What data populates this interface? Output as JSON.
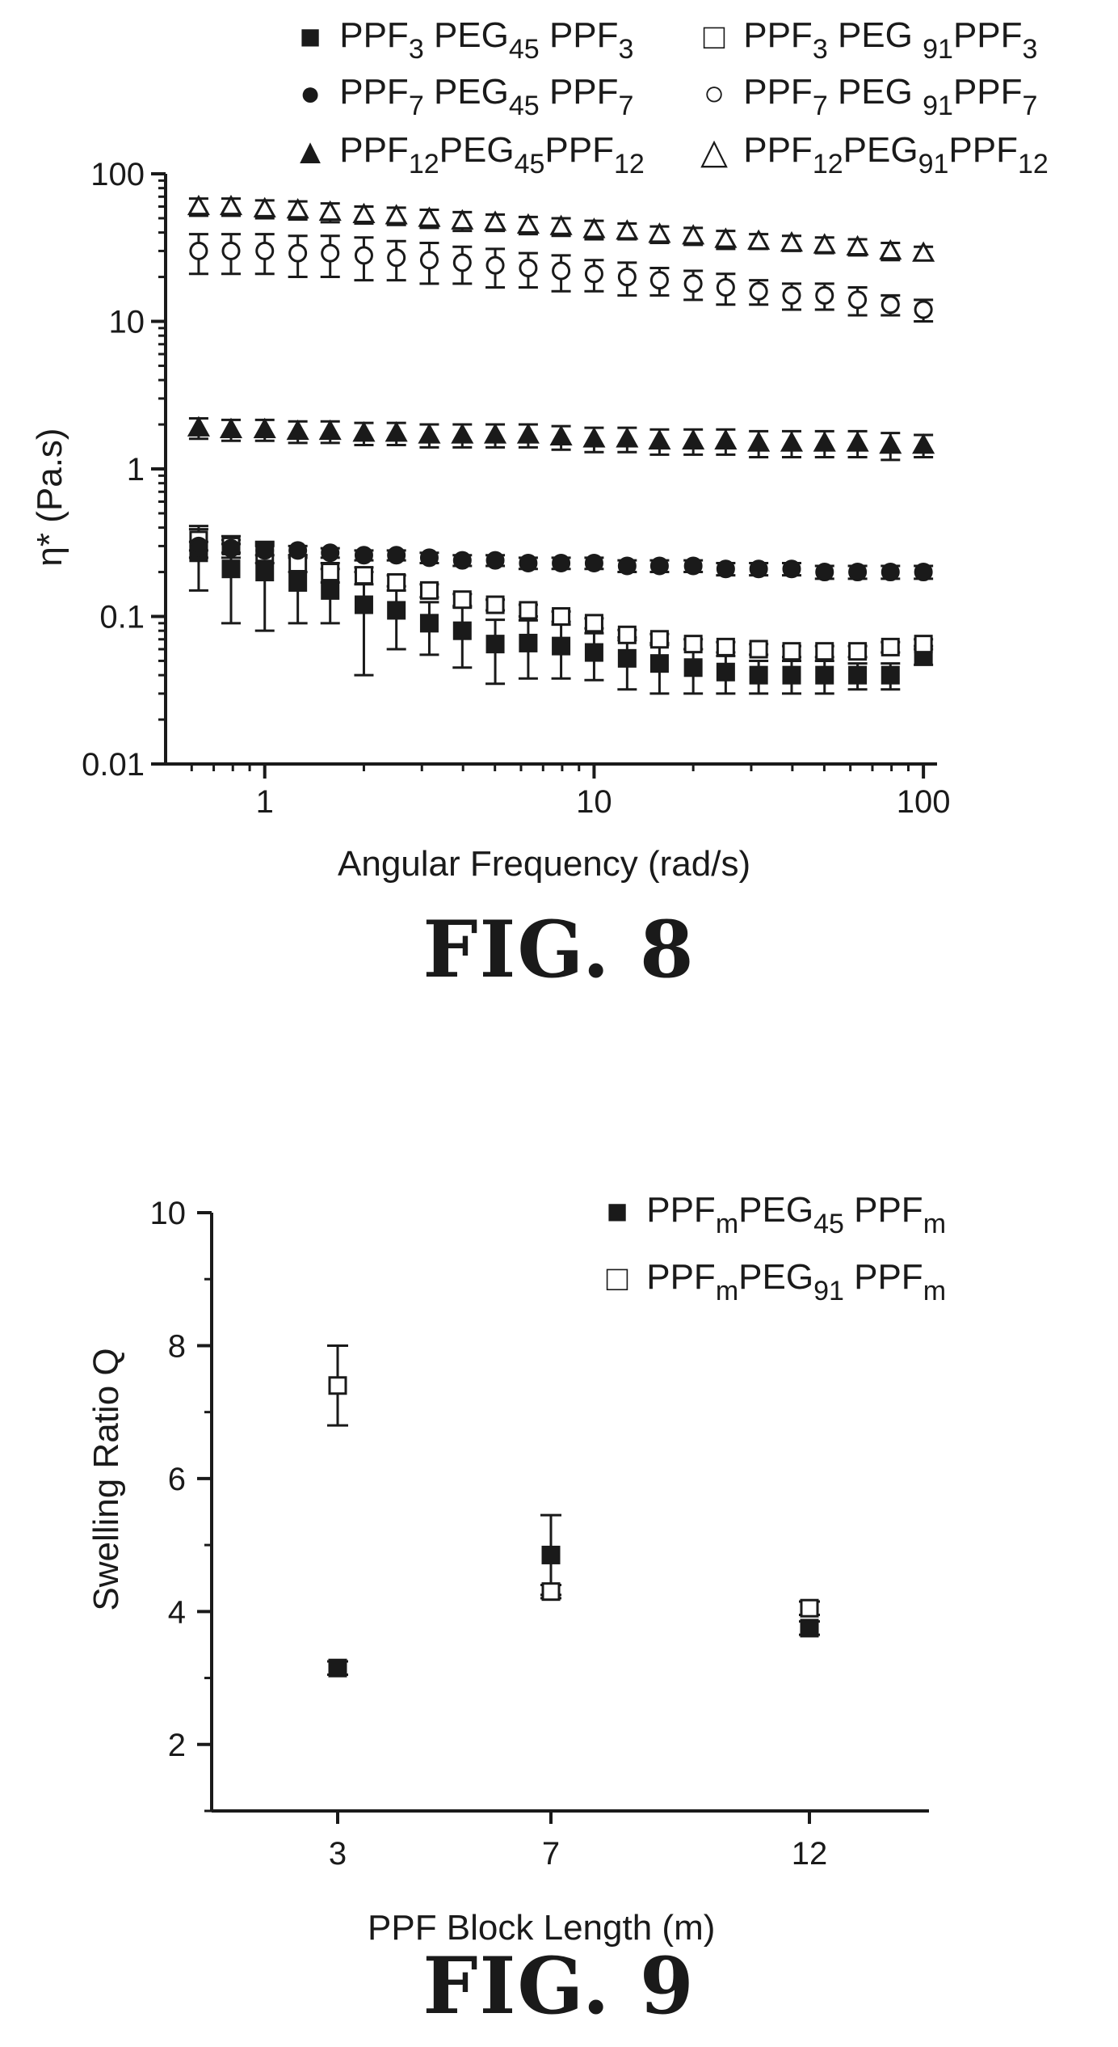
{
  "chart_data": [
    {
      "type": "scatter",
      "caption": "FIG. 8",
      "xlabel": "Angular Frequency (rad/s)",
      "ylabel": "η* (Pa.s)",
      "xscale": "log",
      "yscale": "log",
      "xlim": [
        0.5,
        110
      ],
      "ylim": [
        0.01,
        100
      ],
      "x_ticks": [
        "1",
        "10",
        "100"
      ],
      "y_ticks": [
        "0.01",
        "0.1",
        "1",
        "10",
        "100"
      ],
      "legend_position": "top",
      "x": [
        0.63,
        0.79,
        1.0,
        1.26,
        1.58,
        2.0,
        2.51,
        3.16,
        3.98,
        5.01,
        6.31,
        7.94,
        10.0,
        12.6,
        15.8,
        20.0,
        25.1,
        31.6,
        39.8,
        50.1,
        63.1,
        79.4,
        100.0
      ],
      "series": [
        {
          "name": "PPF3 PEG45 PPF3",
          "marker": "filled-square",
          "values": [
            0.27,
            0.21,
            0.2,
            0.17,
            0.15,
            0.12,
            0.11,
            0.09,
            0.08,
            0.065,
            0.066,
            0.063,
            0.057,
            0.052,
            0.048,
            0.045,
            0.042,
            0.04,
            0.04,
            0.04,
            0.04,
            0.04,
            0.055
          ],
          "error": [
            0.12,
            0.12,
            0.12,
            0.08,
            0.06,
            0.08,
            0.05,
            0.035,
            0.035,
            0.03,
            0.028,
            0.025,
            0.02,
            0.02,
            0.018,
            0.015,
            0.012,
            0.01,
            0.01,
            0.01,
            0.008,
            0.008,
            0.008
          ]
        },
        {
          "name": "PPF3 PEG91 PPF3",
          "marker": "open-square",
          "values": [
            0.33,
            0.3,
            0.27,
            0.23,
            0.2,
            0.19,
            0.17,
            0.15,
            0.13,
            0.12,
            0.11,
            0.1,
            0.09,
            0.075,
            0.07,
            0.065,
            0.062,
            0.06,
            0.058,
            0.058,
            0.058,
            0.062,
            0.065
          ],
          "error": [
            0.08,
            0.05,
            0.04,
            0.03,
            0.03,
            0.025,
            0.02,
            0.015,
            0.012,
            0.01,
            0.01,
            0.008,
            0.007,
            0.006,
            0.006,
            0.005,
            0.005,
            0.005,
            0.005,
            0.005,
            0.005,
            0.005,
            0.005
          ]
        },
        {
          "name": "PPF7 PEG45 PPF7",
          "marker": "filled-circle",
          "values": [
            0.3,
            0.29,
            0.28,
            0.28,
            0.27,
            0.26,
            0.26,
            0.25,
            0.24,
            0.24,
            0.23,
            0.23,
            0.23,
            0.22,
            0.22,
            0.22,
            0.21,
            0.21,
            0.21,
            0.2,
            0.2,
            0.2,
            0.2
          ],
          "error": [
            0.02,
            0.02,
            0.02,
            0.02,
            0.02,
            0.02,
            0.02,
            0.02,
            0.02,
            0.02,
            0.02,
            0.02,
            0.02,
            0.02,
            0.02,
            0.02,
            0.02,
            0.02,
            0.02,
            0.02,
            0.02,
            0.02,
            0.02
          ]
        },
        {
          "name": "PPF7 PEG91 PPF7",
          "marker": "open-circle",
          "values": [
            30,
            30,
            30,
            29,
            29,
            28,
            27,
            26,
            25,
            24,
            23,
            22,
            21,
            20,
            19,
            18,
            17,
            16,
            15,
            15,
            14,
            13,
            12
          ],
          "error": [
            9,
            9,
            9,
            9,
            9,
            9,
            8,
            8,
            7,
            7,
            6,
            6,
            5,
            5,
            4,
            4,
            4,
            3,
            3,
            3,
            3,
            2,
            2
          ]
        },
        {
          "name": "PPF12 PEG45 PPF12",
          "marker": "filled-triangle",
          "values": [
            1.9,
            1.85,
            1.85,
            1.8,
            1.8,
            1.75,
            1.75,
            1.7,
            1.7,
            1.7,
            1.7,
            1.65,
            1.6,
            1.6,
            1.55,
            1.55,
            1.55,
            1.5,
            1.5,
            1.5,
            1.5,
            1.45,
            1.45
          ],
          "error": [
            0.3,
            0.3,
            0.3,
            0.3,
            0.3,
            0.3,
            0.3,
            0.3,
            0.3,
            0.3,
            0.3,
            0.3,
            0.3,
            0.3,
            0.3,
            0.3,
            0.3,
            0.3,
            0.3,
            0.3,
            0.3,
            0.3,
            0.25
          ]
        },
        {
          "name": "PPF12 PEG91 PPF12",
          "marker": "open-triangle",
          "values": [
            60,
            60,
            58,
            57,
            55,
            53,
            52,
            50,
            48,
            47,
            45,
            44,
            42,
            41,
            39,
            38,
            36,
            35,
            34,
            33,
            32,
            30,
            29
          ],
          "error": [
            8,
            8,
            8,
            8,
            8,
            7,
            7,
            7,
            7,
            6,
            6,
            6,
            6,
            5,
            5,
            5,
            5,
            4,
            4,
            4,
            4,
            4,
            3
          ]
        }
      ]
    },
    {
      "type": "scatter",
      "caption": "FIG. 9",
      "xlabel": "PPF Block Length (m)",
      "ylabel": "Swelling Ratio  Q",
      "categories": [
        "3",
        "7",
        "12"
      ],
      "ylim": [
        1.0,
        10.0
      ],
      "y_ticks": [
        "2",
        "4",
        "6",
        "8",
        "10"
      ],
      "legend_position": "top-right",
      "series": [
        {
          "name": "PPFm PEG45 PPFm",
          "marker": "filled-square",
          "values": [
            3.15,
            4.85,
            3.75
          ],
          "error": [
            0.1,
            0.6,
            0.1
          ]
        },
        {
          "name": "PPFm PEG91 PPFm",
          "marker": "open-square",
          "values": [
            7.4,
            4.3,
            4.05
          ],
          "error": [
            0.6,
            0.1,
            0.1
          ]
        }
      ]
    }
  ],
  "legend8": {
    "items": [
      {
        "a": "PPF",
        "s1": "3",
        "b": " PEG",
        "s2": "45",
        "c": " PPF",
        "s3": "3"
      },
      {
        "a": "PPF",
        "s1": "3",
        "b": " PEG ",
        "s2": "91",
        "c": "PPF",
        "s3": "3"
      },
      {
        "a": "PPF",
        "s1": "7",
        "b": " PEG",
        "s2": "45",
        "c": " PPF",
        "s3": "7"
      },
      {
        "a": "PPF",
        "s1": "7",
        "b": " PEG ",
        "s2": "91",
        "c": "PPF",
        "s3": "7"
      },
      {
        "a": "PPF",
        "s1": "12",
        "b": "PEG",
        "s2": "45",
        "c": "PPF",
        "s3": "12"
      },
      {
        "a": "PPF",
        "s1": "12",
        "b": "PEG",
        "s2": "91",
        "c": "PPF",
        "s3": "12"
      }
    ],
    "symbols": [
      "■",
      "□",
      "●",
      "○",
      "▲",
      "△"
    ]
  },
  "legend9": {
    "items": [
      {
        "a": "PPF",
        "s1": "m",
        "b": "PEG",
        "s2": "45",
        "c": " PPF",
        "s3": "m"
      },
      {
        "a": "PPF",
        "s1": "m",
        "b": "PEG",
        "s2": "91",
        "c": " PPF",
        "s3": "m"
      }
    ],
    "symbols": [
      "■",
      "□"
    ]
  }
}
